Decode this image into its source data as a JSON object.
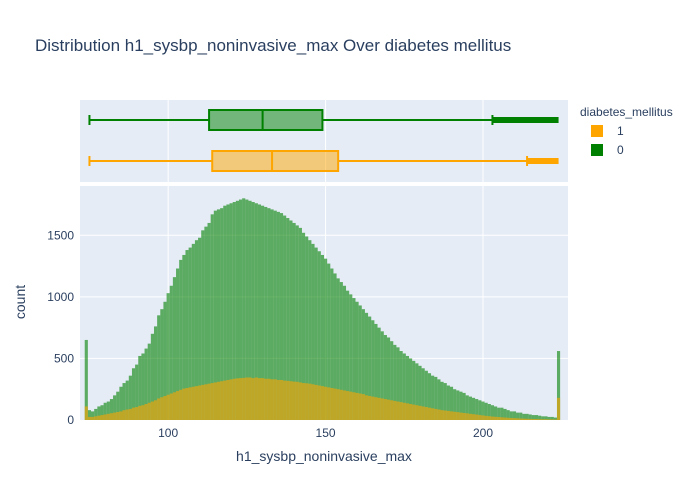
{
  "chart_data": {
    "type": "histogram",
    "title": "Distribution h1_sysbp_noninvasive_max Over diabetes mellitus",
    "xlabel": "h1_sysbp_noninvasive_max",
    "ylabel": "count",
    "xlim": [
      72,
      227
    ],
    "ylim": [
      0,
      1900
    ],
    "x_ticks": [
      100,
      150,
      200
    ],
    "y_ticks": [
      0,
      500,
      1000,
      1500
    ],
    "grid": true,
    "barmode": "overlay",
    "legend": {
      "title": "diabetes_mellitus",
      "position": "top-right",
      "entries": [
        "1",
        "0"
      ]
    },
    "colors": {
      "1": "#ffa500",
      "0": "#008000",
      "plot_bg": "#e5ecf6"
    },
    "bin_start": 74,
    "bin_width": 1,
    "series": [
      {
        "name": "0",
        "color": "#008000",
        "values": [
          650,
          80,
          70,
          90,
          110,
          120,
          140,
          150,
          170,
          200,
          230,
          270,
          300,
          320,
          360,
          420,
          450,
          520,
          540,
          580,
          620,
          700,
          760,
          850,
          900,
          960,
          1030,
          1090,
          1160,
          1230,
          1300,
          1340,
          1380,
          1400,
          1430,
          1460,
          1480,
          1540,
          1570,
          1600,
          1670,
          1700,
          1710,
          1720,
          1740,
          1750,
          1760,
          1770,
          1780,
          1790,
          1800,
          1790,
          1780,
          1770,
          1760,
          1750,
          1740,
          1730,
          1720,
          1710,
          1700,
          1690,
          1680,
          1660,
          1640,
          1620,
          1600,
          1580,
          1560,
          1520,
          1490,
          1460,
          1430,
          1400,
          1370,
          1340,
          1310,
          1270,
          1230,
          1190,
          1150,
          1120,
          1090,
          1050,
          1020,
          990,
          960,
          930,
          900,
          870,
          840,
          810,
          780,
          750,
          720,
          690,
          670,
          640,
          610,
          590,
          560,
          540,
          520,
          500,
          480,
          460,
          440,
          420,
          400,
          380,
          360,
          350,
          330,
          310,
          300,
          280,
          270,
          250,
          240,
          230,
          220,
          200,
          190,
          180,
          170,
          160,
          150,
          140,
          130,
          120,
          110,
          100,
          100,
          90,
          80,
          70,
          70,
          60,
          60,
          50,
          50,
          45,
          40,
          40,
          35,
          30,
          30,
          25,
          25,
          20,
          560
        ]
      },
      {
        "name": "1",
        "color": "#ffa500",
        "values": [
          110,
          25,
          25,
          30,
          35,
          40,
          45,
          50,
          55,
          60,
          65,
          70,
          80,
          85,
          90,
          100,
          105,
          115,
          120,
          130,
          140,
          150,
          160,
          175,
          185,
          195,
          205,
          215,
          225,
          235,
          245,
          255,
          260,
          265,
          270,
          275,
          280,
          285,
          290,
          295,
          300,
          305,
          310,
          315,
          320,
          325,
          330,
          335,
          338,
          340,
          342,
          345,
          345,
          340,
          345,
          340,
          340,
          335,
          335,
          330,
          330,
          325,
          325,
          320,
          318,
          315,
          312,
          310,
          305,
          300,
          298,
          295,
          290,
          285,
          280,
          275,
          270,
          265,
          260,
          255,
          250,
          245,
          240,
          235,
          230,
          225,
          220,
          215,
          210,
          200,
          195,
          190,
          185,
          180,
          175,
          170,
          165,
          160,
          155,
          150,
          145,
          140,
          135,
          130,
          125,
          120,
          115,
          110,
          105,
          100,
          95,
          90,
          85,
          80,
          77,
          74,
          70,
          67,
          64,
          60,
          57,
          54,
          50,
          47,
          44,
          40,
          37,
          34,
          31,
          28,
          26,
          24,
          22,
          20,
          18,
          16,
          15,
          14,
          12,
          11,
          10,
          9,
          8,
          8,
          7,
          6,
          6,
          5,
          5,
          4,
          180
        ]
      }
    ],
    "boxplots": [
      {
        "name": "0",
        "color": "#008000",
        "min": 75,
        "q1": 113,
        "median": 130,
        "q3": 149,
        "upper_fence": 203,
        "outliers_to": 224
      },
      {
        "name": "1",
        "color": "#ffa500",
        "min": 75,
        "q1": 114,
        "median": 133,
        "q3": 154,
        "upper_fence": 214,
        "outliers_to": 224
      }
    ]
  }
}
